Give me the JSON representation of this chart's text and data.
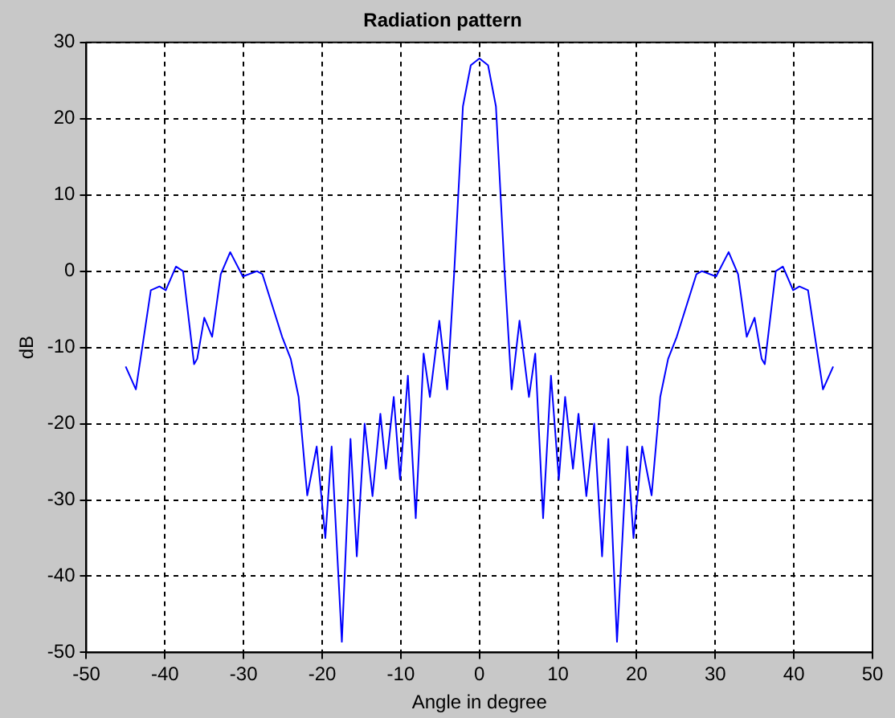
{
  "chart_data": {
    "type": "line",
    "title": "Radiation pattern",
    "xlabel": "Angle in degree",
    "ylabel": "dB",
    "xlim": [
      -50,
      50
    ],
    "xticks": [
      -50,
      -40,
      -30,
      -20,
      -10,
      0,
      10,
      20,
      30,
      40,
      50
    ],
    "ylim": [
      -50,
      30
    ],
    "yticks": [
      -50,
      -40,
      -30,
      -20,
      -10,
      0,
      10,
      20,
      30
    ],
    "grid": true,
    "legend": false,
    "marker": "none",
    "line_style": "solid",
    "series": [
      {
        "color": "#0000ff",
        "x": [
          -45,
          -43.7,
          -42.8,
          -41.8,
          -40.7,
          -39.9,
          -38.6,
          -37.7,
          -36.3,
          -35.9,
          -35,
          -34,
          -32.9,
          -31.7,
          -30.1,
          -28.3,
          -27.6,
          -25.1,
          -24,
          -23,
          -21.9,
          -20.7,
          -19.6,
          -18.8,
          -17.5,
          -16.4,
          -15.6,
          -14.6,
          -13.6,
          -12.6,
          -11.9,
          -10.9,
          -10.1,
          -9.1,
          -8.1,
          -7.1,
          -6.3,
          -5.1,
          -4.1,
          -3.2,
          -2.1,
          -1.1,
          0,
          1.1,
          2.1,
          3.2,
          4.1,
          5.1,
          6.3,
          7.1,
          8.1,
          9.1,
          10.1,
          10.9,
          11.9,
          12.6,
          13.6,
          14.6,
          15.6,
          16.4,
          17.5,
          18.8,
          19.6,
          20.7,
          21.9,
          23,
          24,
          25.1,
          27.6,
          28.3,
          30.1,
          31.7,
          32.9,
          34,
          35,
          35.9,
          36.3,
          37.7,
          38.6,
          39.9,
          40.7,
          41.8,
          42.8,
          43.7,
          45
        ],
        "values": [
          -12.5,
          -15.5,
          -9.4,
          -2.5,
          -2,
          -2.5,
          0.6,
          0,
          -12.2,
          -11.5,
          -6.1,
          -8.6,
          -0.4,
          2.5,
          -0.7,
          0,
          -0.4,
          -8.6,
          -11.5,
          -16.5,
          -29.4,
          -23,
          -35,
          -23,
          -48.6,
          -22,
          -37.4,
          -20,
          -29.5,
          -18.7,
          -25.9,
          -16.5,
          -27.3,
          -13.7,
          -32.4,
          -10.8,
          -16.5,
          -6.5,
          -15.5,
          0,
          21.6,
          27,
          27.9,
          27,
          21.6,
          0,
          -15.5,
          -6.5,
          -16.5,
          -10.8,
          -32.4,
          -13.7,
          -27.3,
          -16.5,
          -25.9,
          -18.7,
          -29.5,
          -20,
          -37.4,
          -22,
          -48.6,
          -23,
          -35,
          -23,
          -29.4,
          -16.5,
          -11.5,
          -8.6,
          -0.4,
          0,
          -0.7,
          2.5,
          -0.4,
          -8.6,
          -6.1,
          -11.5,
          -12.2,
          0,
          0.6,
          -2.5,
          -2,
          -2.5,
          -9.4,
          -15.5,
          -12.5
        ]
      }
    ]
  }
}
